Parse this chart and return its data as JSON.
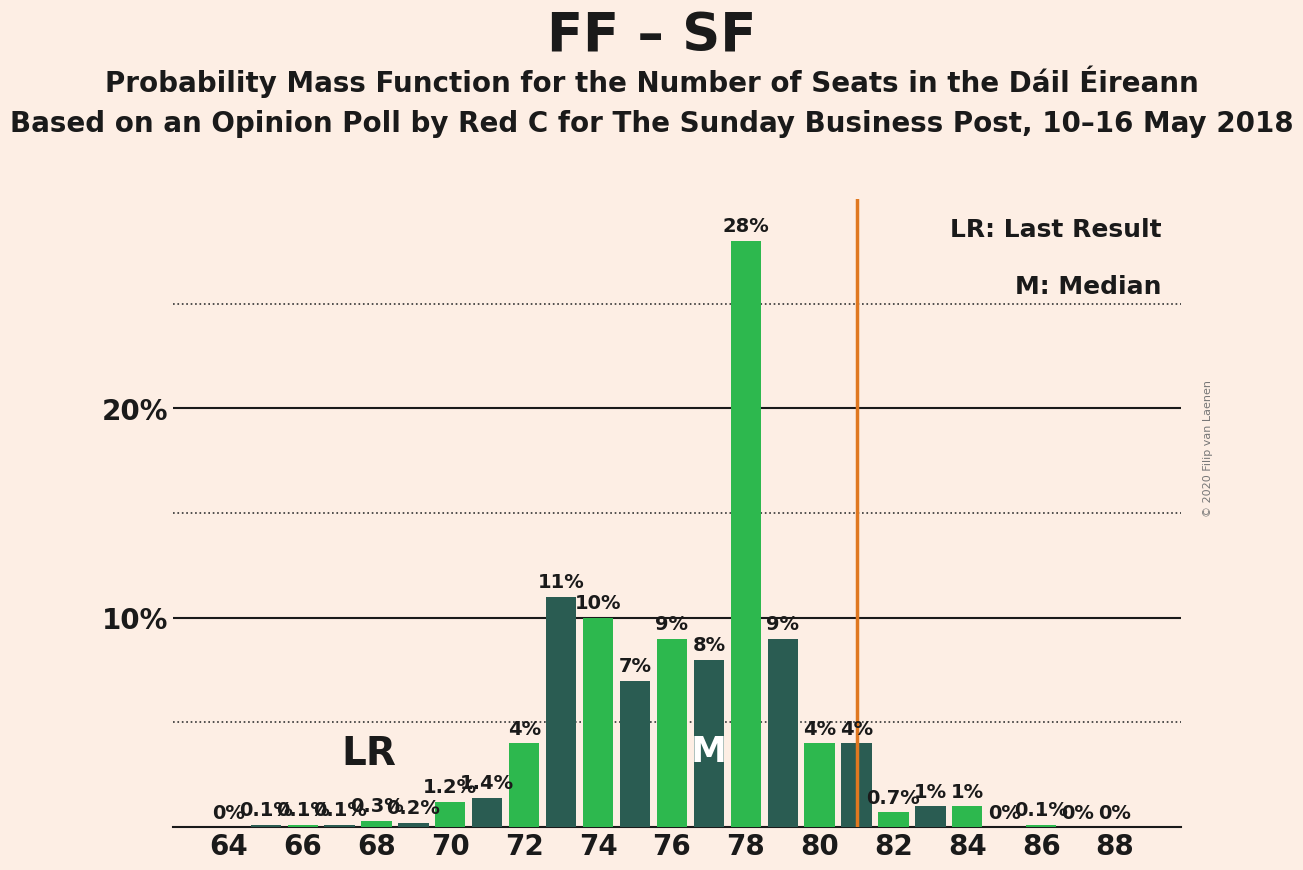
{
  "title": "FF – SF",
  "subtitle1": "Probability Mass Function for the Number of Seats in the Dáil Éireann",
  "subtitle2": "Based on an Opinion Poll by Red C for The Sunday Business Post, 10–16 May 2018",
  "copyright": "© 2020 Filip van Laenen",
  "seats": [
    64,
    65,
    66,
    67,
    68,
    69,
    70,
    71,
    72,
    73,
    74,
    75,
    76,
    77,
    78,
    79,
    80,
    81,
    82,
    83,
    84,
    85,
    86,
    87,
    88
  ],
  "values": [
    0.0,
    0.1,
    0.1,
    0.1,
    0.3,
    0.2,
    1.2,
    1.4,
    4.0,
    11.0,
    10.0,
    7.0,
    9.0,
    8.0,
    28.0,
    9.0,
    4.0,
    4.0,
    0.7,
    1.0,
    1.0,
    0.0,
    0.1,
    0.0,
    0.0
  ],
  "bar_colors": [
    "#2db84e",
    "#2a5c52",
    "#2db84e",
    "#2a5c52",
    "#2db84e",
    "#2a5c52",
    "#2db84e",
    "#2a5c52",
    "#2db84e",
    "#2a5c52",
    "#2db84e",
    "#2a5c52",
    "#2db84e",
    "#2a5c52",
    "#2db84e",
    "#2a5c52",
    "#2db84e",
    "#2a5c52",
    "#2db84e",
    "#2a5c52",
    "#2db84e",
    "#2a5c52",
    "#2db84e",
    "#2a5c52",
    "#2db84e"
  ],
  "background_color": "#fdeee4",
  "lr_seat": 69,
  "median_seat": 77,
  "vline_seat": 81,
  "vline_color": "#e07820",
  "ylim_max": 30,
  "solid_yticks": [
    10,
    20
  ],
  "dotted_yticks": [
    5,
    15,
    25
  ],
  "xlabel_seats": [
    64,
    66,
    68,
    70,
    72,
    74,
    76,
    78,
    80,
    82,
    84,
    86,
    88
  ],
  "tick_fontsize": 20,
  "title_fontsize": 38,
  "subtitle_fontsize": 20,
  "bar_label_fontsize": 14,
  "lr_fontsize": 28,
  "m_fontsize": 26,
  "legend_fontsize": 18
}
